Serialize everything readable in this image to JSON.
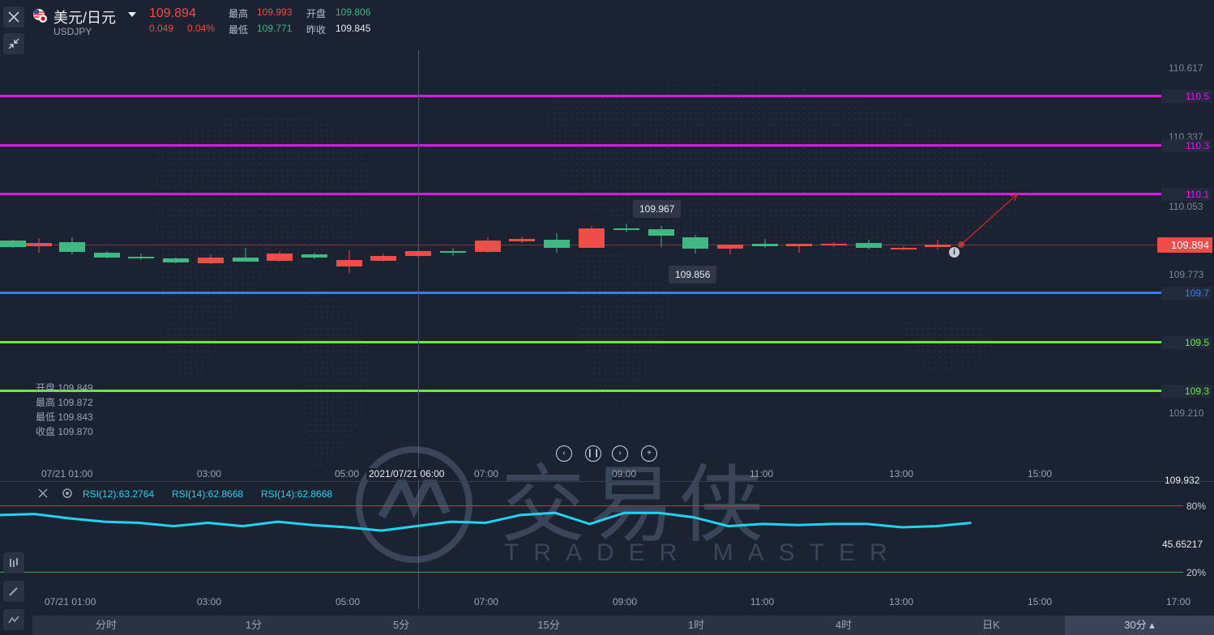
{
  "header": {
    "pair_name": "美元/日元",
    "pair_code": "USDJPY",
    "last_price": "109.894",
    "change": "0.049",
    "change_pct": "0.04%",
    "high_label": "最高",
    "high": "109.993",
    "open_label": "开盘",
    "open": "109.806",
    "low_label": "最低",
    "low": "109.771",
    "prev_close_label": "昨收",
    "prev_close": "109.845"
  },
  "price_axis": {
    "labels": [
      "110.617",
      "110.337",
      "110.053",
      "109.773",
      "109.210"
    ],
    "current_price_tag": "109.894"
  },
  "levels": [
    {
      "label": "110.5",
      "color": "#e016e8"
    },
    {
      "label": "110.3",
      "color": "#e016e8"
    },
    {
      "label": "110.1",
      "color": "#e016e8"
    },
    {
      "label": "109.7",
      "color": "#3b7cf0"
    },
    {
      "label": "109.5",
      "color": "#6de83b"
    },
    {
      "label": "109.3",
      "color": "#6de83b"
    }
  ],
  "tooltips": {
    "high": "109.967",
    "low": "109.856"
  },
  "crosshair": {
    "ohlc": [
      "开盘 109.849",
      "最高 109.872",
      "最低 109.843",
      "收盘 109.870"
    ],
    "time": "2021/07/21 06:00"
  },
  "time_axis": [
    "07/21 01:00",
    "03:00",
    "05:00",
    "07:00",
    "09:00",
    "11:00",
    "13:00",
    "15:00",
    "17:00"
  ],
  "rsi": {
    "labels": [
      "RSI(12):63.2764",
      "RSI(14):62.8668",
      "RSI(14):62.8668"
    ],
    "upper": "80%",
    "lower": "20%",
    "current": "45.65217",
    "scale_top": "109.932",
    "series": [
      72,
      73,
      69,
      66,
      65,
      62,
      65,
      62,
      66,
      63,
      61,
      58,
      62,
      66,
      65,
      72,
      74,
      64,
      74,
      74,
      70,
      62,
      64,
      63,
      64,
      64,
      61,
      62,
      65
    ]
  },
  "watermark": {
    "cn": "交易侠",
    "en": "TRADER MASTER"
  },
  "periods": [
    "分时",
    "1分",
    "5分",
    "15分",
    "1时",
    "4时",
    "日K",
    "30分"
  ],
  "active_period": "30分",
  "colors": {
    "up": "#3fb883",
    "down": "#ef4d47",
    "rsi": "#22d3ee"
  }
}
